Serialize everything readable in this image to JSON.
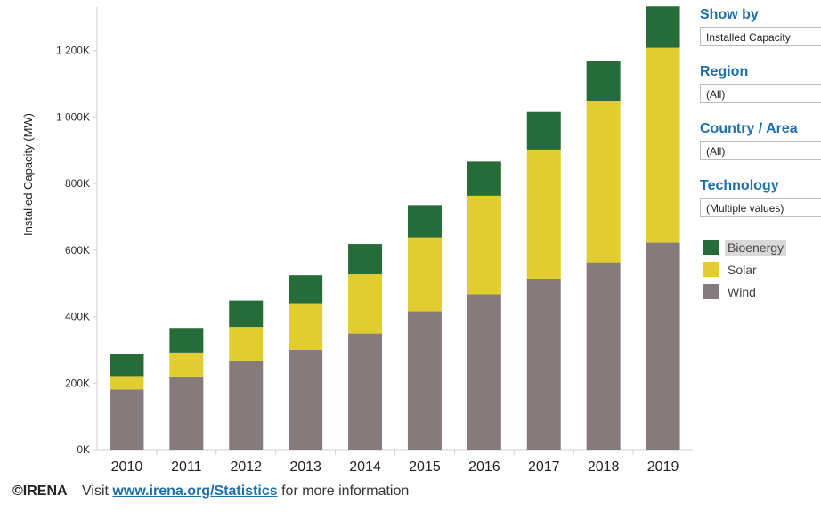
{
  "chart_data": {
    "type": "bar",
    "stacked": true,
    "categories": [
      "2010",
      "2011",
      "2012",
      "2013",
      "2014",
      "2015",
      "2016",
      "2017",
      "2018",
      "2019"
    ],
    "series": [
      {
        "name": "Wind",
        "color": "#857a7c",
        "values": [
          181000,
          220000,
          268000,
          300000,
          349000,
          416000,
          467000,
          514000,
          563000,
          622000
        ]
      },
      {
        "name": "Solar",
        "color": "#e2cd31",
        "values": [
          40000,
          72000,
          101000,
          140000,
          178000,
          222000,
          296000,
          388000,
          486000,
          586000
        ]
      },
      {
        "name": "Bioenergy",
        "color": "#266c38",
        "values": [
          68000,
          74000,
          79000,
          84000,
          91000,
          97000,
          103000,
          113000,
          120000,
          124000
        ]
      }
    ],
    "ylabel": "Installed Capacity (MW)",
    "xlabel": "",
    "ylim": [
      0,
      1330000
    ],
    "yticks": [
      0,
      200000,
      400000,
      600000,
      800000,
      1000000,
      1200000
    ],
    "ytick_labels": [
      "0K",
      "200K",
      "400K",
      "600K",
      "800K",
      "1 000K",
      "1 200K"
    ],
    "grid": false,
    "legend_position": "right"
  },
  "filters": {
    "show_by": {
      "title": "Show by",
      "value": "Installed Capacity"
    },
    "region": {
      "title": "Region",
      "value": "(All)"
    },
    "country": {
      "title": "Country / Area",
      "value": "(All)"
    },
    "technology": {
      "title": "Technology",
      "value": "(Multiple values)"
    }
  },
  "legend": {
    "items": [
      {
        "label": "Bioenergy",
        "color": "#266c38"
      },
      {
        "label": "Solar",
        "color": "#e2cd31"
      },
      {
        "label": "Wind",
        "color": "#857a7c"
      }
    ]
  },
  "footer": {
    "brand": "©IRENA",
    "prefix": "Visit",
    "link": "www.irena.org/Statistics",
    "suffix": "for more information"
  }
}
